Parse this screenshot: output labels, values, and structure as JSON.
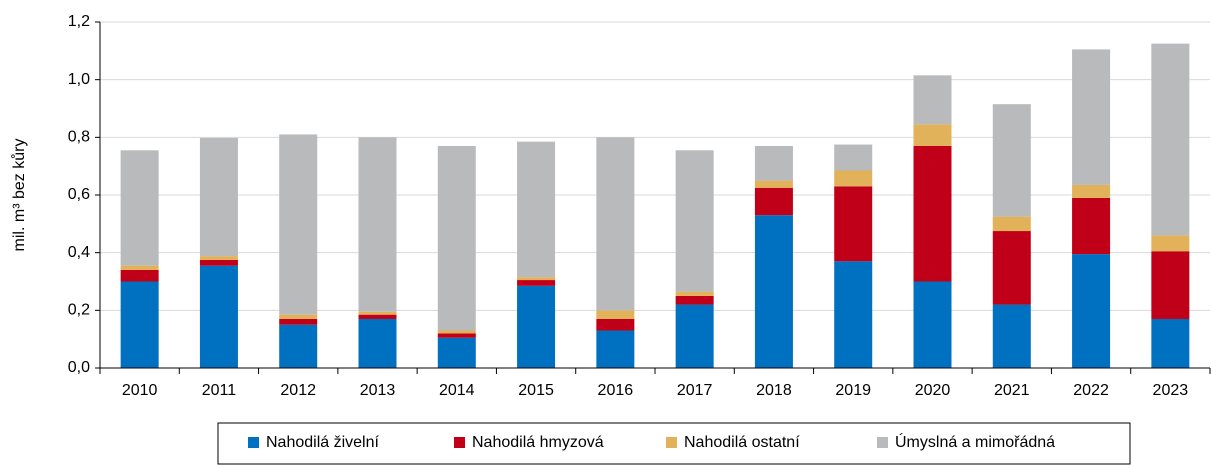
{
  "chart_data": {
    "type": "stacked_bar",
    "y_label": "mil. m³ bez kůry",
    "categories": [
      "2010",
      "2011",
      "2012",
      "2013",
      "2014",
      "2015",
      "2016",
      "2017",
      "2018",
      "2019",
      "2020",
      "2021",
      "2022",
      "2023"
    ],
    "series": [
      {
        "name": "Nahodilá živelní",
        "color": "#0070c0",
        "values": [
          0.3,
          0.355,
          0.15,
          0.17,
          0.105,
          0.285,
          0.13,
          0.22,
          0.53,
          0.37,
          0.3,
          0.22,
          0.395,
          0.17
        ]
      },
      {
        "name": "Nahodilá hmyzová",
        "color": "#c00018",
        "values": [
          0.04,
          0.02,
          0.02,
          0.015,
          0.015,
          0.02,
          0.04,
          0.03,
          0.095,
          0.26,
          0.47,
          0.255,
          0.195,
          0.235
        ]
      },
      {
        "name": "Nahodilá ostatní",
        "color": "#e1b25a",
        "values": [
          0.015,
          0.013,
          0.015,
          0.01,
          0.01,
          0.01,
          0.03,
          0.015,
          0.025,
          0.055,
          0.075,
          0.05,
          0.045,
          0.055
        ]
      },
      {
        "name": "Úmyslná a mimořádná",
        "color": "#b9babc",
        "values": [
          0.4,
          0.41,
          0.625,
          0.605,
          0.64,
          0.47,
          0.6,
          0.49,
          0.12,
          0.09,
          0.17,
          0.39,
          0.47,
          0.665
        ]
      }
    ],
    "ylim": [
      0,
      1.2
    ],
    "yticks": [
      {
        "value": 0,
        "label": "0,0"
      },
      {
        "value": 0.2,
        "label": "0,2"
      },
      {
        "value": 0.4,
        "label": "0,4"
      },
      {
        "value": 0.6,
        "label": "0,6"
      },
      {
        "value": 0.8,
        "label": "0,8"
      },
      {
        "value": 1.0,
        "label": "1,0"
      },
      {
        "value": 1.2,
        "label": "1,2"
      }
    ],
    "grid": true,
    "legend": "bottom"
  }
}
